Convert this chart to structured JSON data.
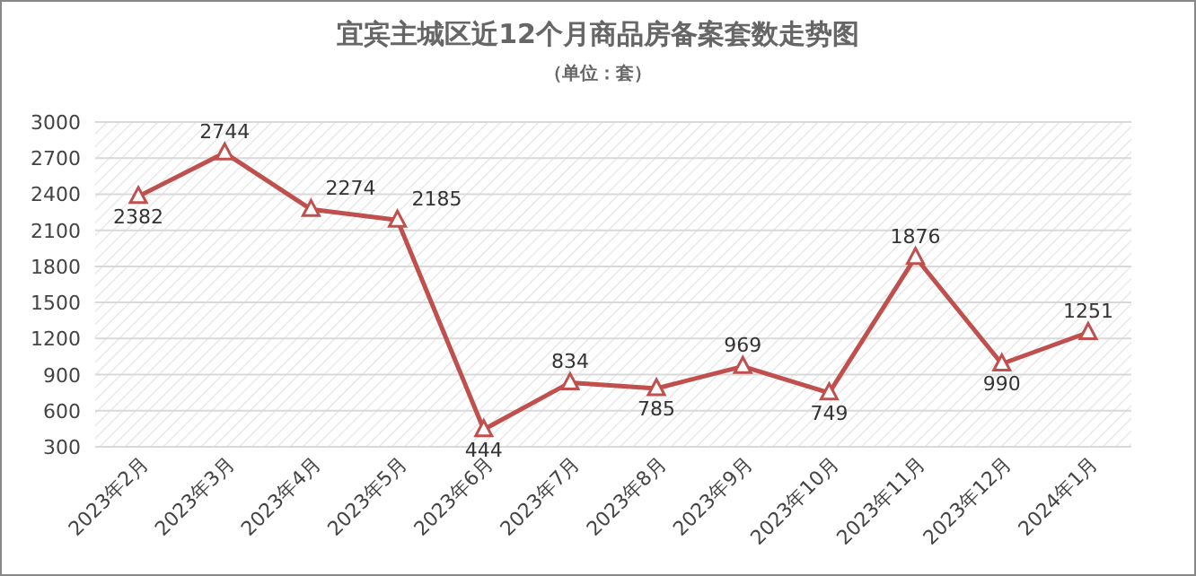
{
  "chart_data": {
    "type": "line",
    "title": "宜宾主城区近12个月商品房备案套数走势图",
    "subtitle": "（单位：套）",
    "categories": [
      "2023年2月",
      "2023年3月",
      "2023年4月",
      "2023年5月",
      "2023年6月",
      "2023年7月",
      "2023年8月",
      "2023年9月",
      "2023年10月",
      "2023年11月",
      "2023年12月",
      "2024年1月"
    ],
    "series": [
      {
        "color": "#c0504d",
        "values": [
          2382,
          2744,
          2274,
          2185,
          444,
          834,
          785,
          969,
          749,
          1876,
          990,
          1251
        ]
      }
    ],
    "ylim": [
      300,
      3000
    ],
    "yticks": [
      300,
      600,
      900,
      1200,
      1500,
      1800,
      2100,
      2400,
      2700,
      3000
    ],
    "grid": "y",
    "marker": "triangle",
    "line_style": "solid",
    "data_labels": true
  }
}
